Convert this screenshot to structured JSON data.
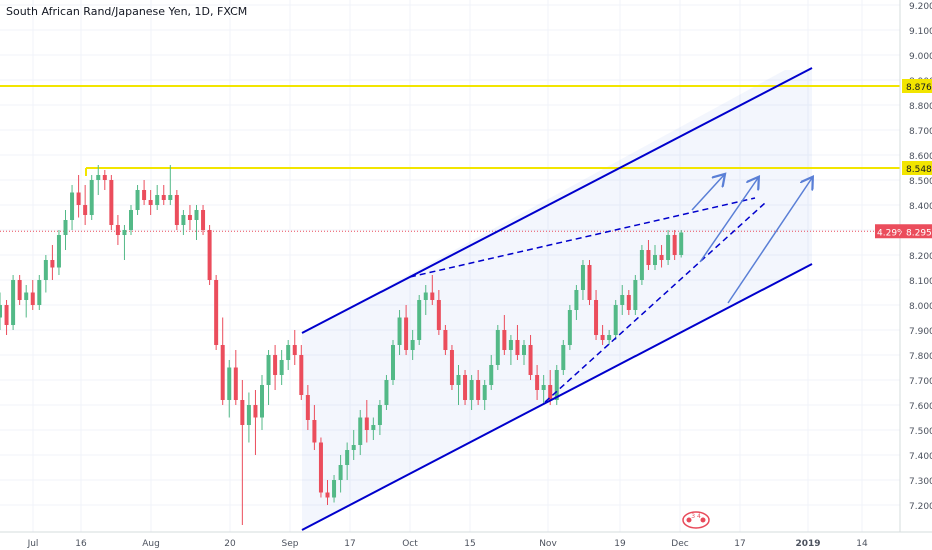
{
  "chart_data": {
    "type": "candlestick",
    "title": "South African Rand/Japanese Yen, 1D, FXCM",
    "y_axis": {
      "ticks": [
        7.2,
        7.3,
        7.4,
        7.5,
        7.6,
        7.7,
        7.8,
        7.9,
        8.0,
        8.1,
        8.2,
        8.3,
        8.4,
        8.5,
        8.6,
        8.7,
        8.8,
        8.9,
        9.0,
        9.1,
        9.2
      ],
      "ylim": [
        7.14,
        9.2
      ]
    },
    "x_axis": {
      "ticks": [
        "Jul",
        "16",
        "Aug",
        "20",
        "Sep",
        "17",
        "Oct",
        "15",
        "Nov",
        "19",
        "Dec",
        "17",
        "2019",
        "14"
      ]
    },
    "colors": {
      "up": "#53b987",
      "down": "#eb4d5c",
      "channel": "#0000cc",
      "level": "#f2e500",
      "arrow": "#5a7fd6",
      "current": "#eb4d5c"
    },
    "levels": [
      {
        "value": 8.876,
        "label": "8.876"
      },
      {
        "value": 8.548,
        "label": "8.548"
      }
    ],
    "current_price": {
      "value": 8.295,
      "label": "8.295",
      "change": "4.29%"
    },
    "watermark": {
      "text": "3 4"
    },
    "candles": [
      [
        7.95,
        8.05,
        7.9,
        8.0
      ],
      [
        8.0,
        8.02,
        7.88,
        7.92
      ],
      [
        7.92,
        8.12,
        7.9,
        8.1
      ],
      [
        8.1,
        8.12,
        8.0,
        8.02
      ],
      [
        8.02,
        8.08,
        7.95,
        8.05
      ],
      [
        8.05,
        8.1,
        7.98,
        8.0
      ],
      [
        8.0,
        8.12,
        7.98,
        8.1
      ],
      [
        8.1,
        8.2,
        8.05,
        8.18
      ],
      [
        8.18,
        8.24,
        8.1,
        8.15
      ],
      [
        8.15,
        8.3,
        8.12,
        8.28
      ],
      [
        8.28,
        8.38,
        8.22,
        8.34
      ],
      [
        8.34,
        8.48,
        8.3,
        8.45
      ],
      [
        8.45,
        8.52,
        8.35,
        8.4
      ],
      [
        8.4,
        8.48,
        8.32,
        8.36
      ],
      [
        8.36,
        8.52,
        8.34,
        8.5
      ],
      [
        8.5,
        8.56,
        8.44,
        8.52
      ],
      [
        8.52,
        8.54,
        8.46,
        8.5
      ],
      [
        8.5,
        8.52,
        8.3,
        8.32
      ],
      [
        8.32,
        8.36,
        8.24,
        8.28
      ],
      [
        8.28,
        8.32,
        8.18,
        8.3
      ],
      [
        8.3,
        8.4,
        8.28,
        8.38
      ],
      [
        8.38,
        8.48,
        8.36,
        8.46
      ],
      [
        8.46,
        8.5,
        8.4,
        8.42
      ],
      [
        8.42,
        8.46,
        8.36,
        8.4
      ],
      [
        8.4,
        8.48,
        8.38,
        8.44
      ],
      [
        8.44,
        8.48,
        8.4,
        8.42
      ],
      [
        8.42,
        8.56,
        8.4,
        8.44
      ],
      [
        8.44,
        8.46,
        8.3,
        8.32
      ],
      [
        8.32,
        8.38,
        8.28,
        8.36
      ],
      [
        8.36,
        8.4,
        8.3,
        8.34
      ],
      [
        8.34,
        8.4,
        8.26,
        8.38
      ],
      [
        8.38,
        8.4,
        8.28,
        8.3
      ],
      [
        8.3,
        8.32,
        8.08,
        8.1
      ],
      [
        8.1,
        8.12,
        7.82,
        7.84
      ],
      [
        7.84,
        7.95,
        7.6,
        7.62
      ],
      [
        7.62,
        7.78,
        7.55,
        7.75
      ],
      [
        7.75,
        7.82,
        7.6,
        7.62
      ],
      [
        7.62,
        7.7,
        7.12,
        7.52
      ],
      [
        7.52,
        7.65,
        7.45,
        7.6
      ],
      [
        7.6,
        7.66,
        7.4,
        7.55
      ],
      [
        7.55,
        7.72,
        7.5,
        7.68
      ],
      [
        7.68,
        7.82,
        7.6,
        7.8
      ],
      [
        7.8,
        7.84,
        7.66,
        7.72
      ],
      [
        7.72,
        7.82,
        7.68,
        7.78
      ],
      [
        7.78,
        7.86,
        7.74,
        7.84
      ],
      [
        7.84,
        7.9,
        7.76,
        7.8
      ],
      [
        7.8,
        7.84,
        7.62,
        7.64
      ],
      [
        7.64,
        7.68,
        7.5,
        7.54
      ],
      [
        7.54,
        7.6,
        7.42,
        7.45
      ],
      [
        7.45,
        7.47,
        7.23,
        7.25
      ],
      [
        7.25,
        7.3,
        7.2,
        7.23
      ],
      [
        7.23,
        7.32,
        7.21,
        7.3
      ],
      [
        7.3,
        7.4,
        7.25,
        7.36
      ],
      [
        7.36,
        7.45,
        7.3,
        7.42
      ],
      [
        7.42,
        7.5,
        7.38,
        7.44
      ],
      [
        7.44,
        7.58,
        7.4,
        7.55
      ],
      [
        7.55,
        7.62,
        7.45,
        7.5
      ],
      [
        7.5,
        7.55,
        7.46,
        7.52
      ],
      [
        7.52,
        7.62,
        7.48,
        7.6
      ],
      [
        7.6,
        7.72,
        7.58,
        7.7
      ],
      [
        7.7,
        7.86,
        7.68,
        7.84
      ],
      [
        7.84,
        7.98,
        7.8,
        7.95
      ],
      [
        7.95,
        8.0,
        7.8,
        7.82
      ],
      [
        7.82,
        7.9,
        7.78,
        7.86
      ],
      [
        7.86,
        8.04,
        7.84,
        8.02
      ],
      [
        8.02,
        8.08,
        7.96,
        8.05
      ],
      [
        8.05,
        8.12,
        8.0,
        8.02
      ],
      [
        8.02,
        8.06,
        7.88,
        7.9
      ],
      [
        7.9,
        7.92,
        7.8,
        7.82
      ],
      [
        7.82,
        7.84,
        7.66,
        7.68
      ],
      [
        7.68,
        7.76,
        7.6,
        7.72
      ],
      [
        7.72,
        7.74,
        7.6,
        7.62
      ],
      [
        7.62,
        7.72,
        7.58,
        7.7
      ],
      [
        7.7,
        7.74,
        7.6,
        7.62
      ],
      [
        7.62,
        7.7,
        7.58,
        7.68
      ],
      [
        7.68,
        7.8,
        7.66,
        7.76
      ],
      [
        7.76,
        7.92,
        7.74,
        7.9
      ],
      [
        7.9,
        7.96,
        7.8,
        7.82
      ],
      [
        7.82,
        7.88,
        7.76,
        7.86
      ],
      [
        7.86,
        7.92,
        7.78,
        7.8
      ],
      [
        7.8,
        7.86,
        7.76,
        7.84
      ],
      [
        7.84,
        7.88,
        7.7,
        7.72
      ],
      [
        7.72,
        7.76,
        7.62,
        7.66
      ],
      [
        7.66,
        7.72,
        7.6,
        7.68
      ],
      [
        7.68,
        7.74,
        7.6,
        7.62
      ],
      [
        7.62,
        7.76,
        7.6,
        7.74
      ],
      [
        7.74,
        7.86,
        7.72,
        7.84
      ],
      [
        7.84,
        8.0,
        7.82,
        7.98
      ],
      [
        7.98,
        8.08,
        7.94,
        8.06
      ],
      [
        8.06,
        8.18,
        8.02,
        8.16
      ],
      [
        8.16,
        8.18,
        8.0,
        8.02
      ],
      [
        8.02,
        8.06,
        7.86,
        7.88
      ],
      [
        7.88,
        7.92,
        7.84,
        7.86
      ],
      [
        7.86,
        7.9,
        7.84,
        7.88
      ],
      [
        7.88,
        8.02,
        7.86,
        8.0
      ],
      [
        8.0,
        8.08,
        7.96,
        8.04
      ],
      [
        8.04,
        8.06,
        7.96,
        7.98
      ],
      [
        7.98,
        8.12,
        7.96,
        8.1
      ],
      [
        8.1,
        8.24,
        8.08,
        8.22
      ],
      [
        8.22,
        8.26,
        8.14,
        8.16
      ],
      [
        8.16,
        8.24,
        8.14,
        8.2
      ],
      [
        8.2,
        8.24,
        8.15,
        8.18
      ],
      [
        8.18,
        8.3,
        8.16,
        8.28
      ],
      [
        8.28,
        8.3,
        8.18,
        8.2
      ],
      [
        8.2,
        8.3,
        8.19,
        8.29
      ]
    ]
  }
}
